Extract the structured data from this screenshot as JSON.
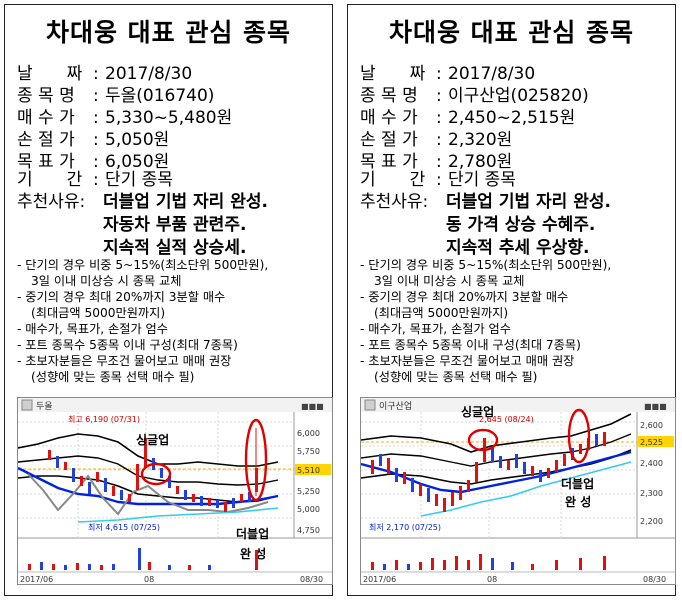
{
  "cards": [
    {
      "title": "차대웅 대표 관심 종목",
      "date_label": "날　　짜",
      "date": "2017/8/30",
      "name_label": "종 목 명",
      "name": "두올(016740)",
      "buy_label": "매 수 가",
      "buy": "5,330~5,480원",
      "stop_label": "손 절 가",
      "stop": "5,050원",
      "target_label": "목 표 가",
      "target": "6,050원",
      "period_label": "기　　간",
      "period": "단기 종목",
      "reason_label": "추천사유:",
      "reasons": [
        "더블업 기법 자리 완성.",
        "자동차 부품 관련주.",
        "지속적 실적 상승세."
      ],
      "notes": [
        {
          "text": "- 단기의 경우 비중 5~15%(최소단위 500만원),",
          "sub": false
        },
        {
          "text": "3일 이내 미상승 시 종목 교체",
          "sub": true
        },
        {
          "text": "- 중기의 경우 최대 20%까지 3분할 매수",
          "sub": false
        },
        {
          "text": "(최대금액 5000만원까지)",
          "sub": true
        },
        {
          "text": "- 매수가, 목표가, 손절가 엄수",
          "sub": false
        },
        {
          "text": "- 포트 종목수 5종목 이내 구성(최대 7종목)",
          "sub": false
        },
        {
          "text": "- 초보자분들은 무조건 물어보고 매매 권장",
          "sub": false
        },
        {
          "text": "(성향에 맞는 종목 선택 매수 필)",
          "sub": true
        }
      ],
      "chart": {
        "stock_label": "두올",
        "high_label": "최고 6,190 (07/31)",
        "low_label": "최저 4,615 (07/25)",
        "price_ticks": [
          "6,000",
          "5,750",
          "5,510",
          "5,250",
          "5,000",
          "4,750"
        ],
        "current_price": "5,510",
        "x_labels": [
          "2017/06",
          "08",
          "08/30"
        ],
        "annotation_top": "싱글업",
        "annotation_bottom_1": "더블업",
        "annotation_bottom_2": "완  성"
      }
    },
    {
      "title": "차대웅 대표 관심 종목",
      "date_label": "날　　짜",
      "date": "2017/8/30",
      "name_label": "종 목 명",
      "name": "이구산업(025820)",
      "buy_label": "매 수 가",
      "buy": "2,450~2,515원",
      "stop_label": "손 절 가",
      "stop": "2,320원",
      "target_label": "목 표 가",
      "target": "2,780원",
      "period_label": "기　　간",
      "period": "단기 종목",
      "reason_label": "추천사유:",
      "reasons": [
        "더블업 기법 자리 완성.",
        "동 가격 상승 수혜주.",
        "지속적 추세 우상향."
      ],
      "notes": [
        {
          "text": "- 단기의 경우 비중 5~15%(최소단위 500만원),",
          "sub": false
        },
        {
          "text": "3일 이내 미상승 시 종목 교체",
          "sub": true
        },
        {
          "text": "- 중기의 경우 최대 20%까지 3분할 매수",
          "sub": false
        },
        {
          "text": "(최대금액 5000만원까지)",
          "sub": true
        },
        {
          "text": "- 매수가, 목표가, 손절가 엄수",
          "sub": false
        },
        {
          "text": "- 포트 종목수 5종목 이내 구성(최대 7종목)",
          "sub": false
        },
        {
          "text": "- 초보자분들은 무조건 물어보고 매매 권장",
          "sub": false
        },
        {
          "text": "(성향에 맞는 종목 선택 매수 필)",
          "sub": true
        }
      ],
      "chart": {
        "stock_label": "이구산업",
        "high_label": "2,645 (08/24)",
        "low_label": "최저 2,170 (07/25)",
        "price_ticks": [
          "2,600",
          "2,525",
          "2,400",
          "2,300",
          "2,200"
        ],
        "current_price": "2,525",
        "x_labels": [
          "2017/06",
          "08",
          "08/30"
        ],
        "annotation_top": "싱글업",
        "annotation_bottom_1": "더블업",
        "annotation_bottom_2": "완  성"
      }
    }
  ]
}
